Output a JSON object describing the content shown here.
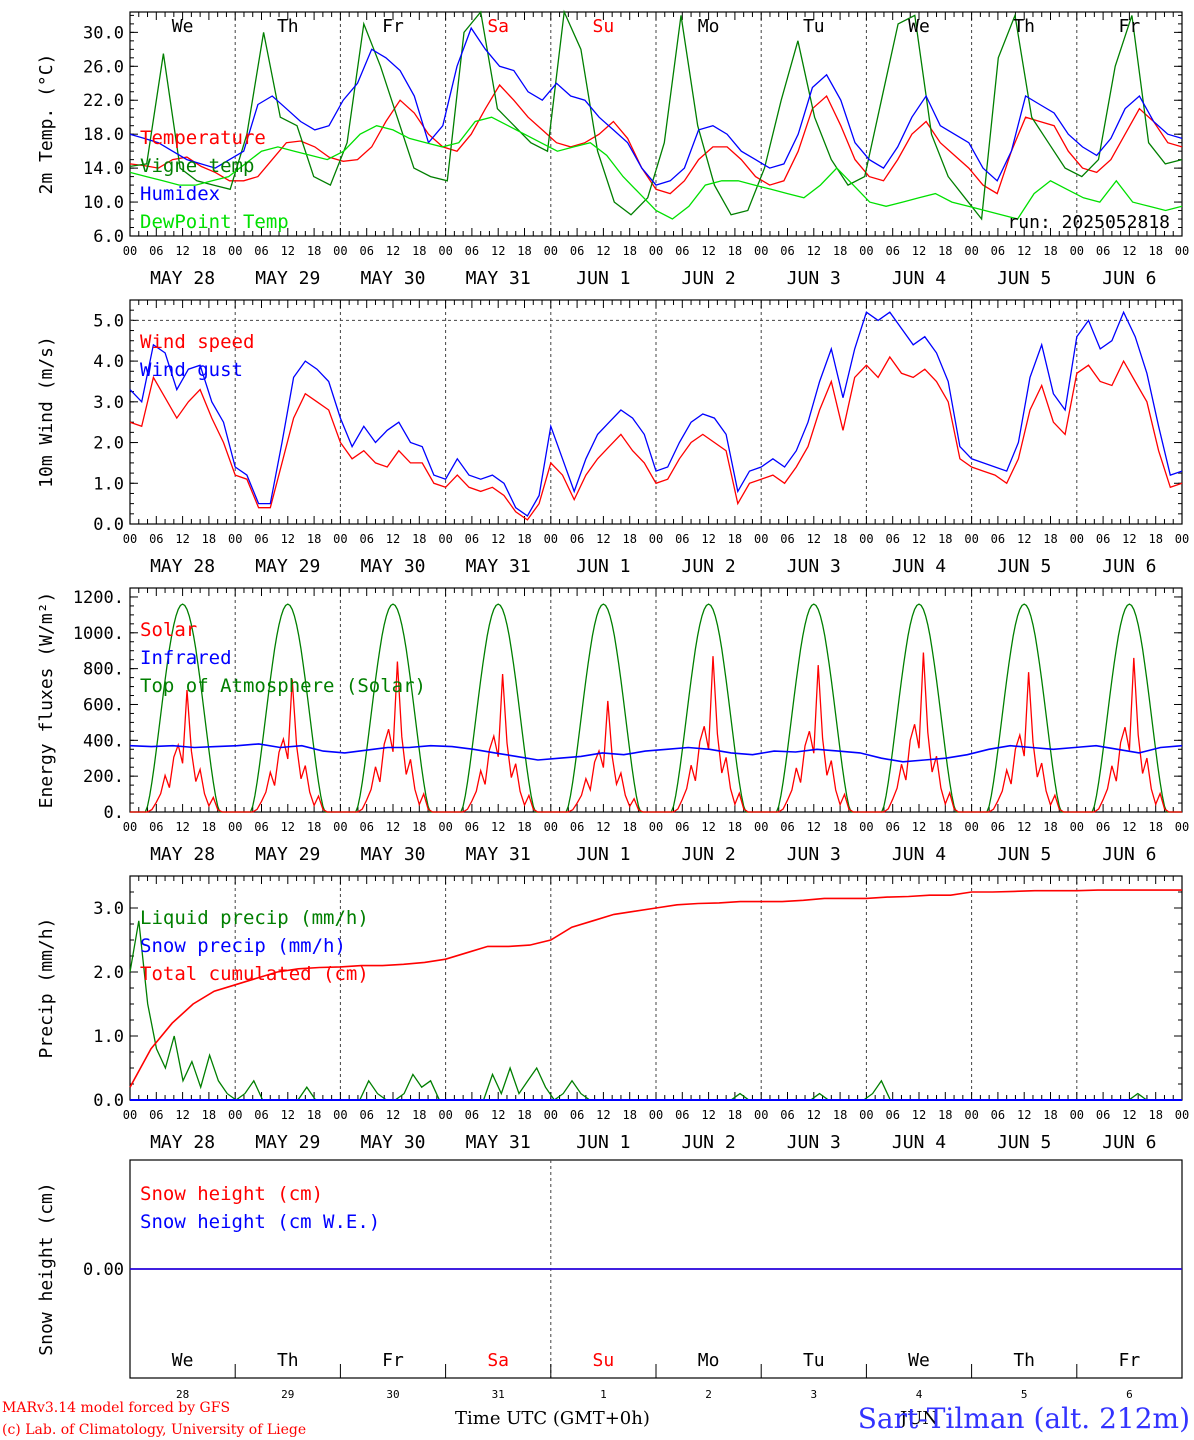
{
  "run_label": "run: 2025052818",
  "credit_lines": [
    "MARv3.14 model forced by GFS",
    "(c) Lab. of Climatology, University of Liege"
  ],
  "time_axis_label": "Time UTC (GMT+0h)",
  "station_label": "Sart-Tilman (alt. 212m)",
  "month_label_bottom": "JUN",
  "day_names": [
    "We",
    "Th",
    "Fr",
    "Sa",
    "Su",
    "Mo",
    "Tu",
    "We",
    "Th",
    "Fr"
  ],
  "weekend_flags": [
    false,
    false,
    false,
    true,
    true,
    false,
    false,
    false,
    false,
    false
  ],
  "date_labels": [
    "MAY 28",
    "MAY 29",
    "MAY 30",
    "MAY 31",
    "JUN  1",
    "JUN  2",
    "JUN  3",
    "JUN  4",
    "JUN  5",
    "JUN  6"
  ],
  "day_numbers": [
    "28",
    "29",
    "30",
    "31",
    "1",
    "2",
    "3",
    "4",
    "5",
    "6"
  ],
  "hour_ticks": [
    "00",
    "06",
    "12",
    "18"
  ],
  "final_hour_tick": "00",
  "colors": {
    "red": "#ff0000",
    "green": "#007f00",
    "blue": "#0000ff",
    "lightgreen": "#00e000",
    "weekend": "#ff0000",
    "grid": "#444444",
    "text": "#000000",
    "station": "#3333ff"
  },
  "chart_data": [
    {
      "id": "temperature",
      "type": "line",
      "ylabel": "2m Temp. (°C)",
      "ylim": [
        6.0,
        32.0
      ],
      "yticks": [
        6.0,
        10.0,
        14.0,
        18.0,
        22.0,
        26.0,
        30.0
      ],
      "ytick_labels": [
        "6.0",
        "10.0",
        "14.0",
        "18.0",
        "22.0",
        "26.0",
        "30.0"
      ],
      "x_hours": [
        0,
        3,
        6,
        9,
        12,
        15,
        18,
        21,
        24,
        27,
        30,
        33,
        36,
        39,
        42,
        45,
        48,
        51,
        54,
        57,
        60,
        63,
        66,
        69,
        72,
        75,
        78,
        81,
        84,
        87,
        90,
        93,
        96,
        99,
        102,
        105,
        108,
        111,
        114,
        117,
        120,
        123,
        126,
        129,
        132,
        135,
        138,
        141,
        144,
        147,
        150,
        153,
        156,
        159,
        162,
        165,
        168,
        171,
        174,
        177,
        180,
        183,
        186,
        189,
        192,
        195,
        198,
        201,
        204,
        207,
        210,
        213,
        216,
        219,
        222,
        225,
        228,
        231,
        234,
        237,
        240
      ],
      "series": [
        {
          "name": "Temperature",
          "color": "red",
          "values": [
            14.5,
            14.3,
            14.0,
            15.0,
            15.3,
            14.2,
            13.5,
            12.5,
            12.5,
            13.0,
            15.0,
            17.0,
            17.2,
            16.5,
            15.3,
            14.8,
            15.0,
            16.5,
            19.5,
            22.0,
            20.5,
            18.0,
            16.5,
            16.0,
            18.0,
            21.0,
            23.8,
            22.0,
            20.0,
            18.5,
            17.0,
            16.5,
            17.0,
            18.0,
            19.5,
            17.5,
            14.0,
            11.5,
            11.0,
            12.5,
            15.0,
            16.5,
            16.5,
            15.0,
            13.0,
            12.0,
            12.5,
            16.0,
            21.0,
            22.5,
            19.0,
            15.0,
            13.0,
            12.5,
            15.0,
            18.0,
            19.5,
            17.0,
            15.5,
            14.0,
            12.0,
            11.0,
            16.0,
            20.0,
            19.5,
            19.0,
            16.0,
            14.0,
            13.5,
            15.0,
            18.0,
            21.0,
            19.5,
            17.0,
            16.5
          ]
        },
        {
          "name": "Vigne temp",
          "color": "green",
          "values": [
            14.2,
            14.5,
            27.5,
            14.0,
            12.5,
            12.0,
            11.5,
            18.0,
            30.0,
            20.0,
            19.0,
            13.0,
            12.0,
            17.0,
            31.0,
            26.0,
            20.0,
            14.0,
            13.0,
            12.5,
            30.0,
            33.0,
            21.0,
            19.0,
            17.0,
            16.0,
            33.0,
            28.0,
            16.0,
            10.0,
            8.5,
            10.5,
            17.0,
            32.0,
            19.0,
            12.0,
            8.5,
            9.0,
            14.0,
            22.0,
            29.0,
            20.0,
            15.0,
            12.0,
            13.0,
            22.0,
            31.0,
            32.0,
            18.0,
            13.0,
            10.5,
            8.0,
            27.0,
            32.0,
            20.0,
            17.0,
            14.0,
            13.0,
            15.0,
            26.0,
            32.0,
            17.0,
            14.5,
            15.0
          ]
        },
        {
          "name": "Humidex",
          "color": "blue",
          "values": [
            18.0,
            17.5,
            17.0,
            16.0,
            15.0,
            14.5,
            14.0,
            15.0,
            16.0,
            21.5,
            22.5,
            21.0,
            19.5,
            18.5,
            19.0,
            22.0,
            24.0,
            28.0,
            27.0,
            25.5,
            22.5,
            17.0,
            19.0,
            26.0,
            30.5,
            28.0,
            26.0,
            25.5,
            23.0,
            22.0,
            24.0,
            22.5,
            22.0,
            20.0,
            18.5,
            17.0,
            14.0,
            12.0,
            12.5,
            14.0,
            18.5,
            19.0,
            18.0,
            16.0,
            15.0,
            14.0,
            14.5,
            18.0,
            23.5,
            25.0,
            22.0,
            17.0,
            15.0,
            14.0,
            16.5,
            20.0,
            22.5,
            19.0,
            18.0,
            17.0,
            14.0,
            12.5,
            16.0,
            22.5,
            21.5,
            20.5,
            18.0,
            16.5,
            15.5,
            17.5,
            21.0,
            22.5,
            19.5,
            18.0,
            17.5
          ]
        },
        {
          "name": "DewPoint Temp",
          "color": "lightgreen",
          "values": [
            13.5,
            13.0,
            12.5,
            12.0,
            12.0,
            12.5,
            13.0,
            14.5,
            16.0,
            16.5,
            16.0,
            15.5,
            15.0,
            16.0,
            18.0,
            19.0,
            18.5,
            17.5,
            17.0,
            16.5,
            17.0,
            19.5,
            20.0,
            19.0,
            18.0,
            17.0,
            16.0,
            16.5,
            17.0,
            15.5,
            13.0,
            11.0,
            9.0,
            8.0,
            9.5,
            12.0,
            12.5,
            12.5,
            12.0,
            11.5,
            11.0,
            10.5,
            12.0,
            14.0,
            12.0,
            10.0,
            9.5,
            10.0,
            10.5,
            11.0,
            10.0,
            9.5,
            9.0,
            8.5,
            8.0,
            11.0,
            12.5,
            11.5,
            10.5,
            10.0,
            12.5,
            10.0,
            9.5,
            9.0,
            9.5
          ]
        }
      ]
    },
    {
      "id": "wind",
      "type": "line",
      "ylabel": "10m Wind (m/s)",
      "ylim": [
        0.0,
        5.5
      ],
      "yticks": [
        0.0,
        1.0,
        2.0,
        3.0,
        4.0,
        5.0
      ],
      "ytick_labels": [
        "0.0",
        "1.0",
        "2.0",
        "3.0",
        "4.0",
        "5.0"
      ],
      "reference_line": 5.0,
      "series": [
        {
          "name": "Wind speed",
          "color": "red",
          "values": [
            2.5,
            2.4,
            3.6,
            3.1,
            2.6,
            3.0,
            3.3,
            2.6,
            2.0,
            1.2,
            1.1,
            0.4,
            0.4,
            1.5,
            2.6,
            3.2,
            3.0,
            2.8,
            2.0,
            1.6,
            1.8,
            1.5,
            1.4,
            1.8,
            1.5,
            1.5,
            1.0,
            0.9,
            1.2,
            0.9,
            0.8,
            0.9,
            0.7,
            0.3,
            0.1,
            0.5,
            1.5,
            1.2,
            0.6,
            1.2,
            1.6,
            1.9,
            2.2,
            1.8,
            1.5,
            1.0,
            1.1,
            1.6,
            2.0,
            2.2,
            2.0,
            1.8,
            0.5,
            1.0,
            1.1,
            1.2,
            1.0,
            1.4,
            1.9,
            2.8,
            3.5,
            2.3,
            3.6,
            3.9,
            3.6,
            4.1,
            3.7,
            3.6,
            3.8,
            3.5,
            3.0,
            1.6,
            1.4,
            1.3,
            1.2,
            1.0,
            1.6,
            2.8,
            3.4,
            2.5,
            2.2,
            3.7,
            3.9,
            3.5,
            3.4,
            4.0,
            3.5,
            3.0,
            1.8,
            0.9,
            1.0
          ]
        },
        {
          "name": "Wind gust",
          "color": "blue",
          "values": [
            3.3,
            3.0,
            4.4,
            4.2,
            3.3,
            3.8,
            3.9,
            3.0,
            2.5,
            1.4,
            1.2,
            0.5,
            0.5,
            2.0,
            3.6,
            4.0,
            3.8,
            3.5,
            2.6,
            1.9,
            2.4,
            2.0,
            2.3,
            2.5,
            2.0,
            1.9,
            1.2,
            1.1,
            1.6,
            1.2,
            1.1,
            1.2,
            1.0,
            0.4,
            0.2,
            0.7,
            2.4,
            1.6,
            0.8,
            1.6,
            2.2,
            2.5,
            2.8,
            2.6,
            2.2,
            1.3,
            1.4,
            2.0,
            2.5,
            2.7,
            2.6,
            2.2,
            0.8,
            1.3,
            1.4,
            1.6,
            1.4,
            1.8,
            2.5,
            3.5,
            4.3,
            3.1,
            4.3,
            5.2,
            5.0,
            5.2,
            4.8,
            4.4,
            4.6,
            4.2,
            3.5,
            1.9,
            1.6,
            1.5,
            1.4,
            1.3,
            2.0,
            3.6,
            4.4,
            3.2,
            2.8,
            4.6,
            5.0,
            4.3,
            4.5,
            5.2,
            4.6,
            3.7,
            2.4,
            1.2,
            1.3
          ]
        }
      ]
    },
    {
      "id": "energy",
      "type": "line",
      "ylabel": "Energy fluxes (W/m²)",
      "ylim": [
        0,
        1250
      ],
      "yticks": [
        0,
        200,
        400,
        600,
        800,
        1000,
        1200
      ],
      "ytick_labels": [
        "0.",
        "200.",
        "400.",
        "600.",
        "800.",
        "1000.",
        "1200."
      ],
      "toa_peak": 1160,
      "solar_daily_peaks": [
        680,
        740,
        840,
        770,
        620,
        870,
        820,
        890,
        780,
        860
      ],
      "infrared_levels": [
        370,
        365,
        370,
        360,
        365,
        370,
        380,
        360,
        370,
        340,
        330,
        345,
        360,
        360,
        370,
        365,
        350,
        330,
        310,
        290,
        300,
        310,
        330,
        320,
        340,
        350,
        360,
        350,
        330,
        320,
        340,
        335,
        350,
        340,
        330,
        300,
        280,
        290,
        300,
        320,
        350,
        370,
        360,
        350,
        360,
        370,
        350,
        330,
        360,
        370
      ],
      "series": [
        {
          "name": "Solar",
          "color": "red"
        },
        {
          "name": "Infrared",
          "color": "blue"
        },
        {
          "name": "Top of Atmosphere (Solar)",
          "color": "green"
        }
      ]
    },
    {
      "id": "precip",
      "type": "line",
      "ylabel": "Precip (mm/h)",
      "ylim": [
        0.0,
        3.5
      ],
      "yticks": [
        0.0,
        1.0,
        2.0,
        3.0
      ],
      "ytick_labels": [
        "0.0",
        "1.0",
        "2.0",
        "3.0"
      ],
      "series": [
        {
          "name": "Liquid precip (mm/h)",
          "color": "green",
          "values": [
            2.0,
            2.8,
            1.5,
            0.8,
            0.5,
            1.0,
            0.3,
            0.6,
            0.2,
            0.7,
            0.3,
            0.1,
            0.0,
            0.1,
            0.3,
            0.0,
            0.0,
            0.0,
            0.0,
            0.0,
            0.2,
            0.0,
            0.0,
            0.0,
            0.0,
            0.0,
            0.0,
            0.3,
            0.1,
            0.0,
            0.0,
            0.1,
            0.4,
            0.2,
            0.3,
            0.0,
            0.0,
            0.0,
            0.0,
            0.0,
            0.0,
            0.4,
            0.1,
            0.5,
            0.1,
            0.3,
            0.5,
            0.2,
            0.0,
            0.1,
            0.3,
            0.1,
            0.0,
            0.0,
            0.0,
            0.0,
            0.0,
            0.0,
            0.0,
            0.0,
            0.0,
            0.0,
            0.0,
            0.0,
            0.0,
            0.0,
            0.0,
            0.0,
            0.0,
            0.1,
            0.0,
            0.0,
            0.0,
            0.0,
            0.0,
            0.0,
            0.0,
            0.0,
            0.1,
            0.0,
            0.0,
            0.0,
            0.0,
            0.0,
            0.1,
            0.3,
            0.0,
            0.0,
            0.0,
            0.0,
            0.0,
            0.0,
            0.0,
            0.0,
            0.0,
            0.0,
            0.0,
            0.0,
            0.0,
            0.0,
            0.0,
            0.0,
            0.0,
            0.0,
            0.0,
            0.0,
            0.0,
            0.0,
            0.0,
            0.0,
            0.0,
            0.0,
            0.0,
            0.0,
            0.1,
            0.0,
            0.0,
            0.0,
            0.0,
            0.0
          ]
        },
        {
          "name": "Snow precip (mm/h)",
          "color": "blue",
          "values": [
            0.0,
            0.0
          ]
        },
        {
          "name": "Total cumulated (cm)",
          "color": "red",
          "values": [
            0.2,
            0.8,
            1.2,
            1.5,
            1.7,
            1.8,
            1.9,
            2.0,
            2.05,
            2.07,
            2.08,
            2.1,
            2.1,
            2.12,
            2.15,
            2.2,
            2.3,
            2.4,
            2.4,
            2.42,
            2.5,
            2.7,
            2.8,
            2.9,
            2.95,
            3.0,
            3.05,
            3.07,
            3.08,
            3.1,
            3.1,
            3.1,
            3.12,
            3.15,
            3.15,
            3.15,
            3.17,
            3.18,
            3.2,
            3.2,
            3.25,
            3.25,
            3.26,
            3.27,
            3.27,
            3.27,
            3.28,
            3.28,
            3.28,
            3.28,
            3.28
          ]
        }
      ]
    },
    {
      "id": "snow",
      "type": "line",
      "ylabel": "Snow height (cm)",
      "ylim": [
        -1,
        1
      ],
      "yticks": [
        0.0
      ],
      "ytick_labels": [
        "0.00"
      ],
      "series": [
        {
          "name": "Snow height (cm)",
          "color": "red",
          "values": [
            0.0,
            0.0
          ]
        },
        {
          "name": "Snow height (cm W.E.)",
          "color": "blue",
          "values": [
            0.0,
            0.0
          ]
        }
      ]
    }
  ]
}
